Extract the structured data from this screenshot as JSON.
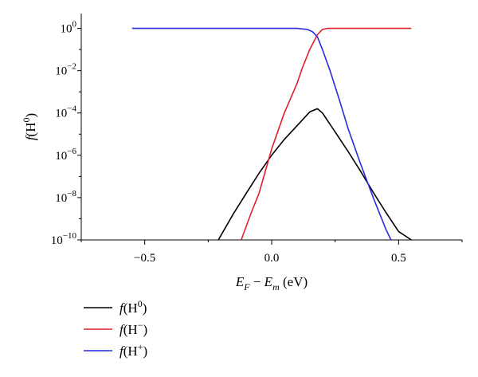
{
  "chart_data": {
    "type": "line",
    "xlabel": {
      "parts": [
        {
          "text": "E",
          "italic": true
        },
        {
          "text": "F",
          "sub": true,
          "italic": true
        },
        {
          "text": " − "
        },
        {
          "text": "E",
          "italic": true
        },
        {
          "text": "m",
          "sub": true,
          "italic": true
        },
        {
          "text": " (eV)"
        }
      ]
    },
    "ylabel": {
      "parts": [
        {
          "text": "f",
          "italic": true
        },
        {
          "text": "(H"
        },
        {
          "text": "0",
          "sup": true
        },
        {
          "text": ")"
        }
      ]
    },
    "xlim": [
      -0.75,
      0.75
    ],
    "ylim_log10": [
      -10,
      0.7
    ],
    "y_scale": "log",
    "grid": false,
    "legend_position": "below",
    "x_ticks": [
      {
        "value": -0.5,
        "label": "−0.5"
      },
      {
        "value": 0.0,
        "label": "0.0"
      },
      {
        "value": 0.5,
        "label": "0.5"
      }
    ],
    "y_ticks": [
      {
        "exp": 0,
        "base": "10",
        "sup": "0"
      },
      {
        "exp": -2,
        "base": "10",
        "sup": "−2"
      },
      {
        "exp": -4,
        "base": "10",
        "sup": "−4"
      },
      {
        "exp": -6,
        "base": "10",
        "sup": "−6"
      },
      {
        "exp": -8,
        "base": "10",
        "sup": "−8"
      },
      {
        "exp": -10,
        "base": "10",
        "sup": "−10"
      }
    ],
    "series": [
      {
        "key": "h0",
        "legend": {
          "prefix": "f",
          "open": "(H",
          "sup": "0",
          "close": ")"
        },
        "color": "#000000",
        "x": [
          -0.21,
          -0.15,
          -0.1,
          -0.05,
          0.0,
          0.05,
          0.1,
          0.15,
          0.18,
          0.2,
          0.25,
          0.3,
          0.35,
          0.4,
          0.45,
          0.5,
          0.55
        ],
        "log10_y": [
          -10,
          -8.75,
          -7.8,
          -6.85,
          -6.0,
          -5.25,
          -4.6,
          -3.95,
          -3.8,
          -4.0,
          -4.9,
          -5.8,
          -6.75,
          -7.75,
          -8.7,
          -9.6,
          -10
        ]
      },
      {
        "key": "hminus",
        "legend": {
          "prefix": "f",
          "open": "(H",
          "sup": "−",
          "close": ")"
        },
        "color": "#e0202a",
        "x": [
          -0.12,
          -0.08,
          -0.05,
          0.0,
          0.05,
          0.1,
          0.12,
          0.15,
          0.18,
          0.2,
          0.22,
          0.25,
          0.3,
          0.4,
          0.55
        ],
        "log10_y": [
          -10,
          -8.7,
          -7.8,
          -5.7,
          -4.0,
          -2.6,
          -1.9,
          -1.0,
          -0.3,
          -0.05,
          0.0,
          0.0,
          0.0,
          0.0,
          0.0
        ]
      },
      {
        "key": "hplus",
        "legend": {
          "prefix": "f",
          "open": "(H",
          "sup": "+",
          "close": ")"
        },
        "color": "#2a2ae0",
        "x": [
          -0.55,
          -0.3,
          0.0,
          0.1,
          0.14,
          0.16,
          0.18,
          0.2,
          0.23,
          0.27,
          0.3,
          0.35,
          0.4,
          0.45,
          0.47
        ],
        "log10_y": [
          0.0,
          0.0,
          0.0,
          0.0,
          -0.05,
          -0.15,
          -0.4,
          -1.0,
          -2.0,
          -3.5,
          -4.7,
          -6.4,
          -8.0,
          -9.5,
          -10
        ]
      }
    ]
  }
}
